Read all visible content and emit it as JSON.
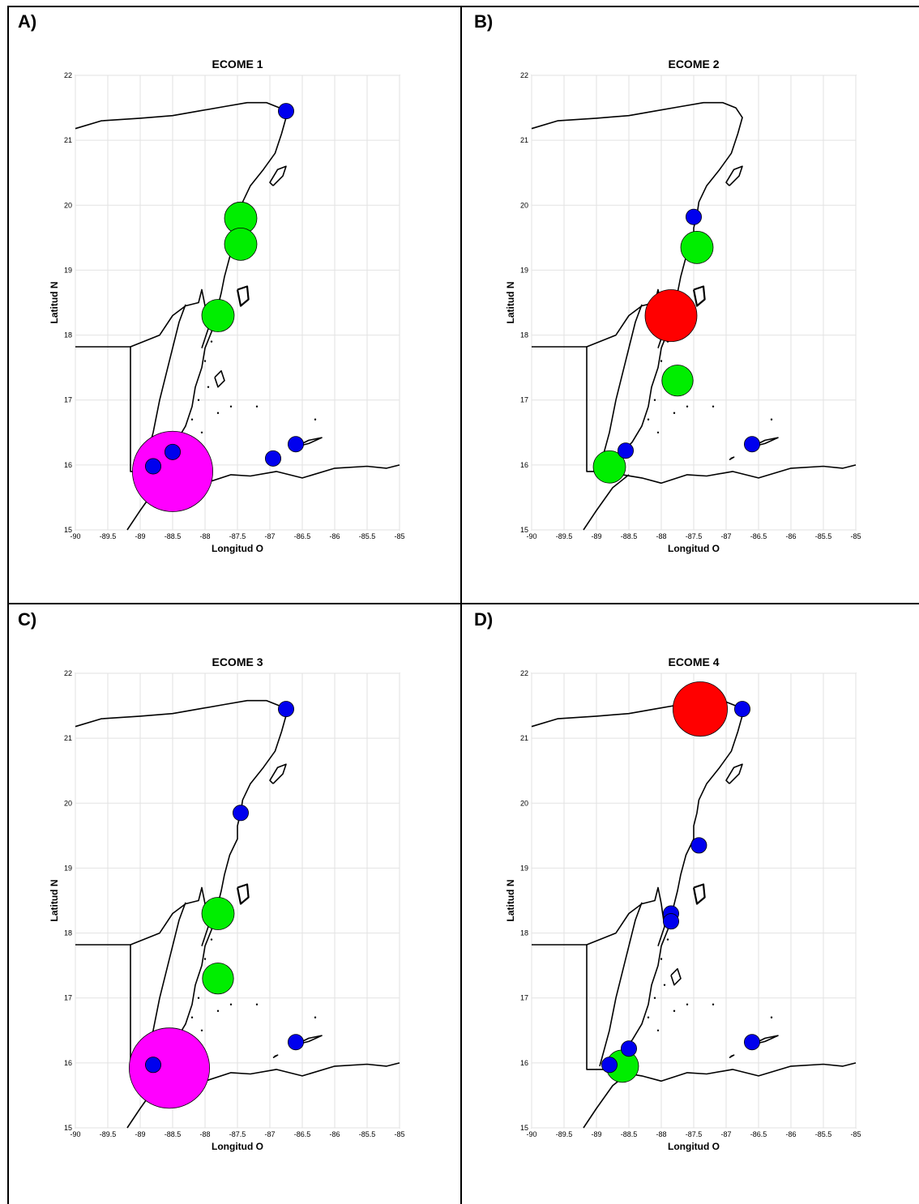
{
  "panels": [
    {
      "label": "A)"
    },
    {
      "label": "B)"
    },
    {
      "label": "C)"
    },
    {
      "label": "D)"
    }
  ],
  "chart_data": [
    {
      "type": "scatter",
      "title": "ECOME 1",
      "xlabel": "Longitud O",
      "ylabel": "Latitud N",
      "xlim": [
        -90,
        -85
      ],
      "ylim": [
        15,
        22
      ],
      "xticks": [
        "-90",
        "-89.5",
        "-89",
        "-88.5",
        "-88",
        "-87.5",
        "-87",
        "-86.5",
        "-86",
        "-85.5",
        "-85"
      ],
      "yticks": [
        "15",
        "16",
        "17",
        "18",
        "19",
        "20",
        "21",
        "22"
      ],
      "grid": true,
      "points": [
        {
          "lon": -88.5,
          "lat": 15.9,
          "r_deg": 0.62,
          "color": "#ff00ff"
        },
        {
          "lon": -87.45,
          "lat": 19.8,
          "r_deg": 0.25,
          "color": "#00ee00"
        },
        {
          "lon": -87.45,
          "lat": 19.4,
          "r_deg": 0.25,
          "color": "#00ee00"
        },
        {
          "lon": -87.8,
          "lat": 18.3,
          "r_deg": 0.25,
          "color": "#00ee00"
        },
        {
          "lon": -86.75,
          "lat": 21.45,
          "r_deg": 0.12,
          "color": "#0000ee"
        },
        {
          "lon": -88.5,
          "lat": 16.2,
          "r_deg": 0.12,
          "color": "#0000ee"
        },
        {
          "lon": -88.8,
          "lat": 15.98,
          "r_deg": 0.12,
          "color": "#0000ee"
        },
        {
          "lon": -86.6,
          "lat": 16.32,
          "r_deg": 0.12,
          "color": "#0000ee"
        },
        {
          "lon": -86.95,
          "lat": 16.1,
          "r_deg": 0.12,
          "color": "#0000ee"
        }
      ]
    },
    {
      "type": "scatter",
      "title": "ECOME 2",
      "xlabel": "Longitud O",
      "ylabel": "Latitud N",
      "xlim": [
        -90,
        -85
      ],
      "ylim": [
        15,
        22
      ],
      "xticks": [
        "-90",
        "-89.5",
        "-89",
        "-88.5",
        "-88",
        "-87.5",
        "-87",
        "-86.5",
        "-86",
        "-85.5",
        "-85"
      ],
      "yticks": [
        "15",
        "16",
        "17",
        "18",
        "19",
        "20",
        "21",
        "22"
      ],
      "grid": true,
      "points": [
        {
          "lon": -87.85,
          "lat": 18.3,
          "r_deg": 0.4,
          "color": "#ff0000"
        },
        {
          "lon": -87.45,
          "lat": 19.35,
          "r_deg": 0.25,
          "color": "#00ee00"
        },
        {
          "lon": -87.75,
          "lat": 17.3,
          "r_deg": 0.24,
          "color": "#00ee00"
        },
        {
          "lon": -88.8,
          "lat": 15.97,
          "r_deg": 0.25,
          "color": "#00ee00"
        },
        {
          "lon": -87.5,
          "lat": 19.82,
          "r_deg": 0.12,
          "color": "#0000ee"
        },
        {
          "lon": -88.55,
          "lat": 16.22,
          "r_deg": 0.12,
          "color": "#0000ee"
        },
        {
          "lon": -86.6,
          "lat": 16.32,
          "r_deg": 0.12,
          "color": "#0000ee"
        }
      ]
    },
    {
      "type": "scatter",
      "title": "ECOME 3",
      "xlabel": "Longitud O",
      "ylabel": "Latitud N",
      "xlim": [
        -90,
        -85
      ],
      "ylim": [
        15,
        22
      ],
      "xticks": [
        "-90",
        "-89.5",
        "-89",
        "-88.5",
        "-88",
        "-87.5",
        "-87",
        "-86.5",
        "-86",
        "-85.5",
        "-85"
      ],
      "yticks": [
        "15",
        "16",
        "17",
        "18",
        "19",
        "20",
        "21",
        "22"
      ],
      "grid": true,
      "points": [
        {
          "lon": -88.55,
          "lat": 15.92,
          "r_deg": 0.62,
          "color": "#ff00ff"
        },
        {
          "lon": -87.8,
          "lat": 18.3,
          "r_deg": 0.25,
          "color": "#00ee00"
        },
        {
          "lon": -87.8,
          "lat": 17.3,
          "r_deg": 0.24,
          "color": "#00ee00"
        },
        {
          "lon": -86.75,
          "lat": 21.45,
          "r_deg": 0.12,
          "color": "#0000ee"
        },
        {
          "lon": -87.45,
          "lat": 19.85,
          "r_deg": 0.12,
          "color": "#0000ee"
        },
        {
          "lon": -88.8,
          "lat": 15.97,
          "r_deg": 0.12,
          "color": "#0000ee"
        },
        {
          "lon": -86.6,
          "lat": 16.32,
          "r_deg": 0.12,
          "color": "#0000ee"
        }
      ]
    },
    {
      "type": "scatter",
      "title": "ECOME 4",
      "xlabel": "Longitud O",
      "ylabel": "Latitud N",
      "xlim": [
        -90,
        -85
      ],
      "ylim": [
        15,
        22
      ],
      "xticks": [
        "-90",
        "-89.5",
        "-89",
        "-88.5",
        "-88",
        "-87.5",
        "-87",
        "-86.5",
        "-86",
        "-85.5",
        "-85"
      ],
      "yticks": [
        "15",
        "16",
        "17",
        "18",
        "19",
        "20",
        "21",
        "22"
      ],
      "grid": true,
      "points": [
        {
          "lon": -87.4,
          "lat": 21.45,
          "r_deg": 0.42,
          "color": "#ff0000"
        },
        {
          "lon": -88.6,
          "lat": 15.95,
          "r_deg": 0.25,
          "color": "#00ee00"
        },
        {
          "lon": -86.75,
          "lat": 21.45,
          "r_deg": 0.12,
          "color": "#0000ee"
        },
        {
          "lon": -87.42,
          "lat": 19.35,
          "r_deg": 0.12,
          "color": "#0000ee"
        },
        {
          "lon": -87.85,
          "lat": 18.3,
          "r_deg": 0.12,
          "color": "#0000ee"
        },
        {
          "lon": -87.85,
          "lat": 18.18,
          "r_deg": 0.12,
          "color": "#0000ee"
        },
        {
          "lon": -88.5,
          "lat": 16.22,
          "r_deg": 0.12,
          "color": "#0000ee"
        },
        {
          "lon": -88.8,
          "lat": 15.97,
          "r_deg": 0.12,
          "color": "#0000ee"
        },
        {
          "lon": -86.6,
          "lat": 16.32,
          "r_deg": 0.12,
          "color": "#0000ee"
        }
      ]
    }
  ]
}
